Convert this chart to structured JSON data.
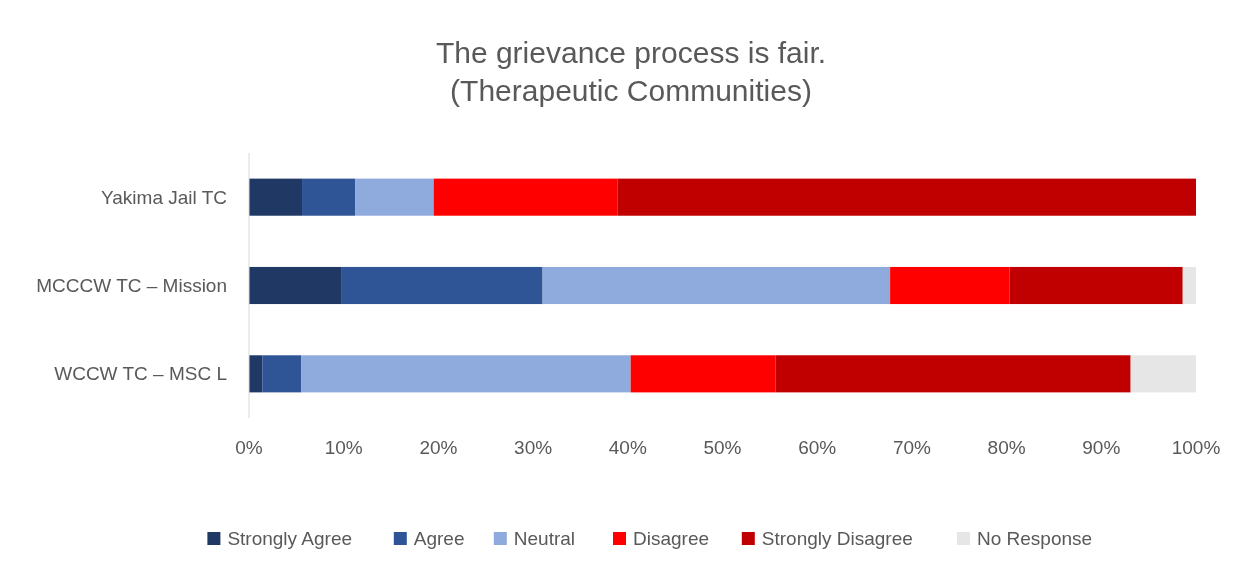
{
  "chart_data": {
    "type": "bar",
    "title": "The grievance process is fair.\n(Therapeutic Communities)",
    "orientation": "horizontal",
    "stacked": true,
    "categories": [
      "Yakima Jail TC",
      "MCCCW TC – Mission",
      "WCCW TC – MSC L"
    ],
    "series": [
      {
        "name": "Strongly Agree",
        "color": "#1f3864",
        "values": [
          5.6,
          9.8,
          1.4
        ]
      },
      {
        "name": "Agree",
        "color": "#2f5597",
        "values": [
          5.6,
          21.2,
          4.1
        ]
      },
      {
        "name": "Neutral",
        "color": "#8faadc",
        "values": [
          8.3,
          36.7,
          34.8
        ]
      },
      {
        "name": "Disagree",
        "color": "#ff0000",
        "values": [
          19.4,
          12.6,
          15.3
        ]
      },
      {
        "name": "Strongly Disagree",
        "color": "#c00000",
        "values": [
          61.1,
          18.3,
          37.5
        ]
      },
      {
        "name": "No Response",
        "color": "#e7e6e6",
        "values": [
          0,
          1.4,
          6.9
        ]
      }
    ],
    "xlim": [
      0,
      100
    ],
    "xticks": [
      {
        "value": 0,
        "label": "0%"
      },
      {
        "value": 10,
        "label": "10%"
      },
      {
        "value": 20,
        "label": "20%"
      },
      {
        "value": 30,
        "label": "30%"
      },
      {
        "value": 40,
        "label": "40%"
      },
      {
        "value": 50,
        "label": "50%"
      },
      {
        "value": 60,
        "label": "60%"
      },
      {
        "value": 70,
        "label": "70%"
      },
      {
        "value": 80,
        "label": "80%"
      },
      {
        "value": 90,
        "label": "90%"
      },
      {
        "value": 100,
        "label": "100%"
      }
    ],
    "grid": false,
    "legend": "bottom"
  }
}
